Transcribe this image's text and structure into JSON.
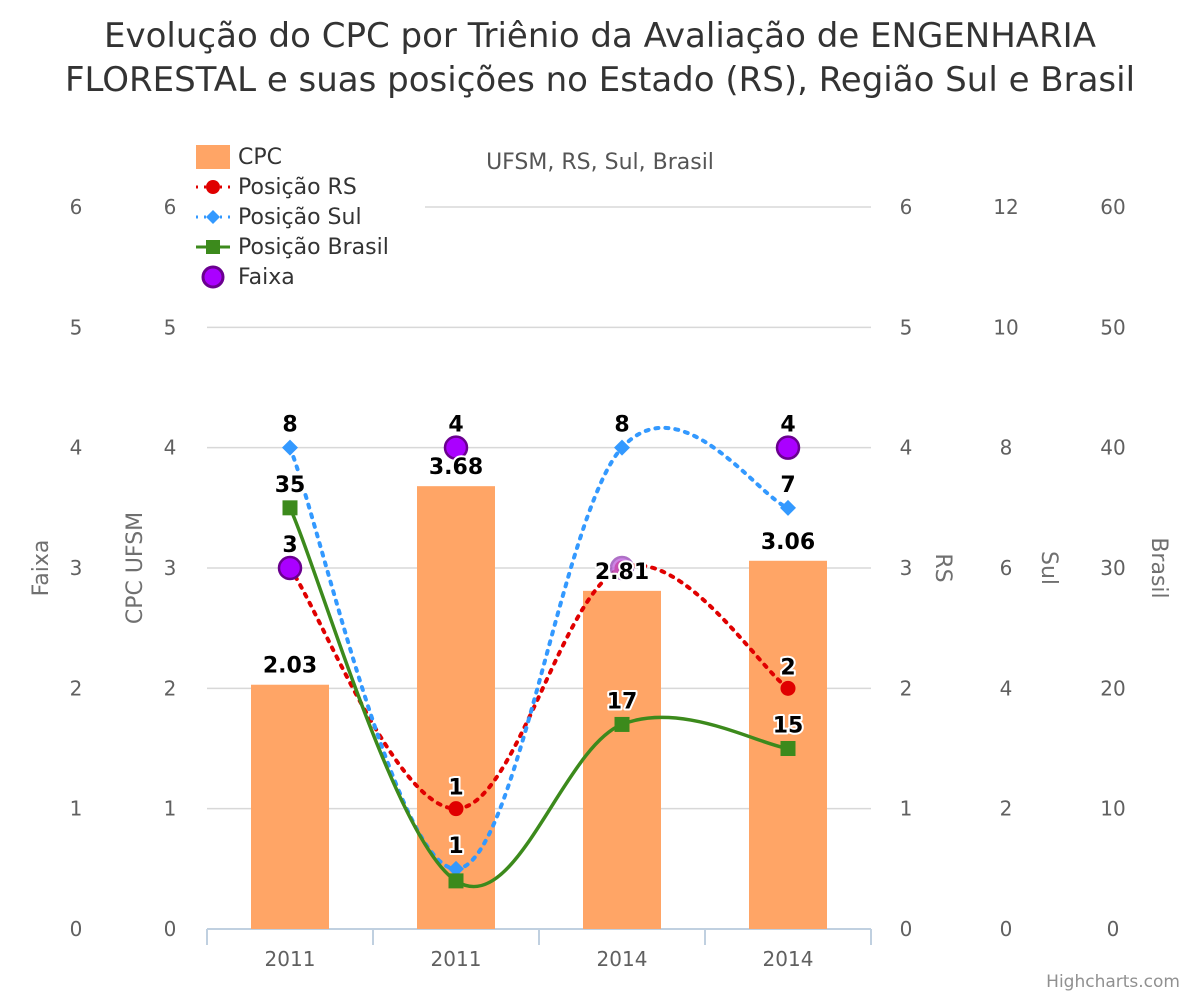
{
  "header": {
    "title": "Evolução do CPC por Triênio da Avaliação de ENGENHARIA FLORESTAL e suas posições no Estado (RS), Região Sul e Brasil",
    "subtitle": "UFSM, RS, Sul, Brasil",
    "credits": "Highcharts.com"
  },
  "legend": {
    "items": [
      {
        "label": "CPC"
      },
      {
        "label": "Posição RS"
      },
      {
        "label": "Posição Sul"
      },
      {
        "label": "Posição Brasil"
      },
      {
        "label": "Faixa"
      }
    ]
  },
  "chart_data": {
    "type": "bar",
    "title": "Evolução do CPC por Triênio da Avaliação de ENGENHARIA FLORESTAL e suas posições no Estado (RS), Região Sul e Brasil",
    "subtitle": "UFSM, RS, Sul, Brasil",
    "categories": [
      "2011",
      "2011",
      "2014",
      "2014"
    ],
    "axes": {
      "faixa": {
        "label": "Faixa",
        "range": [
          0,
          6
        ],
        "ticks": [
          "0",
          "1",
          "2",
          "3",
          "4",
          "5",
          "6"
        ]
      },
      "cpc": {
        "label": "CPC UFSM",
        "range": [
          0,
          6
        ],
        "ticks": [
          "0",
          "1",
          "2",
          "3",
          "4",
          "5",
          "6"
        ]
      },
      "rs": {
        "label": "RS",
        "range": [
          0,
          6
        ],
        "ticks": [
          "0",
          "1",
          "2",
          "3",
          "4",
          "5",
          "6"
        ]
      },
      "sul": {
        "label": "Sul",
        "range": [
          0,
          12
        ],
        "ticks": [
          "0",
          "2",
          "4",
          "6",
          "8",
          "10",
          "12"
        ]
      },
      "brasil": {
        "label": "Brasil",
        "range": [
          0,
          60
        ],
        "ticks": [
          "0",
          "10",
          "20",
          "30",
          "40",
          "50",
          "60"
        ]
      }
    },
    "grid": true,
    "legend_position": "top-left",
    "series": [
      {
        "name": "CPC",
        "type": "bar",
        "axis": "cpc",
        "color": "#FFA566",
        "values": [
          2.03,
          3.68,
          2.81,
          3.06
        ],
        "labels": [
          "2.03",
          "3.68",
          "2.81",
          "3.06"
        ]
      },
      {
        "name": "Posição RS",
        "type": "line",
        "style": "dotted",
        "axis": "rs",
        "color": "#E00000",
        "values": [
          3,
          1,
          3,
          2
        ],
        "labels": [
          "",
          "1",
          "",
          "2"
        ]
      },
      {
        "name": "Posição Sul",
        "type": "line",
        "style": "dotted",
        "axis": "sul",
        "color": "#3399FF",
        "values": [
          8,
          1,
          8,
          7
        ],
        "labels": [
          "8",
          "1",
          "8",
          "7"
        ]
      },
      {
        "name": "Posição Brasil",
        "type": "line",
        "style": "solid",
        "axis": "brasil",
        "color": "#3C8A1C",
        "values": [
          35,
          4,
          17,
          15
        ],
        "labels": [
          "35",
          "",
          "17",
          "15"
        ]
      },
      {
        "name": "Faixa",
        "type": "scatter",
        "axis": "faixa",
        "color": "#9900CC",
        "values": [
          3,
          4,
          3,
          4
        ],
        "labels": [
          "3",
          "4",
          "",
          "4"
        ]
      }
    ]
  }
}
